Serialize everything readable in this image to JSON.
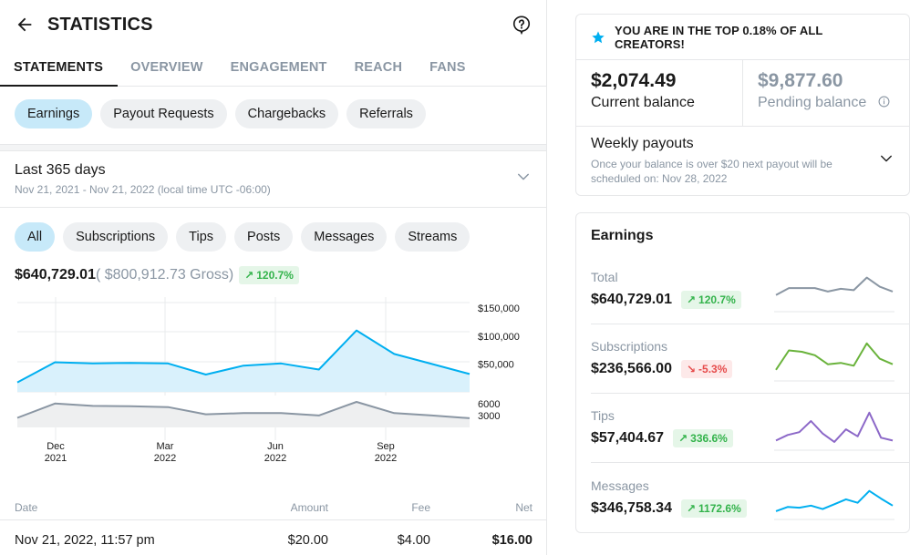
{
  "header": {
    "title": "STATISTICS"
  },
  "tabs": [
    {
      "label": "STATEMENTS",
      "active": true
    },
    {
      "label": "OVERVIEW",
      "active": false
    },
    {
      "label": "ENGAGEMENT",
      "active": false
    },
    {
      "label": "REACH",
      "active": false
    },
    {
      "label": "FANS",
      "active": false
    }
  ],
  "statement_types": [
    {
      "label": "Earnings",
      "active": true
    },
    {
      "label": "Payout Requests",
      "active": false
    },
    {
      "label": "Chargebacks",
      "active": false
    },
    {
      "label": "Referrals",
      "active": false
    }
  ],
  "period": {
    "title": "Last 365 days",
    "range": "Nov 21, 2021 - Nov 21, 2022 (local time UTC -06:00)"
  },
  "filters": [
    {
      "label": "All",
      "active": true
    },
    {
      "label": "Subscriptions",
      "active": false
    },
    {
      "label": "Tips",
      "active": false
    },
    {
      "label": "Posts",
      "active": false
    },
    {
      "label": "Messages",
      "active": false
    },
    {
      "label": "Streams",
      "active": false
    }
  ],
  "summary": {
    "net": "$640,729.01",
    "gross": "( $800,912.73 Gross)",
    "change": "120.7%",
    "change_direction": "up"
  },
  "chart_data": [
    {
      "type": "area",
      "title": "",
      "ylim": [
        0,
        160000
      ],
      "y_ticks": [
        50000,
        100000,
        150000
      ],
      "y_tick_labels": [
        "$50,000",
        "$100,000",
        "$150,000"
      ],
      "x_tick_labels": [
        {
          "month": "Dec",
          "year": "2021"
        },
        {
          "month": "Mar",
          "year": "2022"
        },
        {
          "month": "Jun",
          "year": "2022"
        },
        {
          "month": "Sep",
          "year": "2022"
        }
      ],
      "x": [
        "Nov 2021",
        "Dec 2021",
        "Jan 2022",
        "Feb 2022",
        "Mar 2022",
        "Apr 2022",
        "May 2022",
        "Jun 2022",
        "Jul 2022",
        "Aug 2022",
        "Sep 2022",
        "Oct 2022",
        "Nov 2022"
      ],
      "series": [
        {
          "values": [
            17000,
            53000,
            51000,
            52000,
            51000,
            31000,
            47000,
            51000,
            40000,
            110000,
            68000,
            50000,
            32000
          ],
          "color": "#00aff0"
        }
      ]
    },
    {
      "type": "area",
      "title": "",
      "ylim": [
        0,
        8000
      ],
      "y_ticks": [
        3000,
        6000
      ],
      "y_tick_labels": [
        "3000",
        "6000"
      ],
      "x": [
        "Nov 2021",
        "Dec 2021",
        "Jan 2022",
        "Feb 2022",
        "Mar 2022",
        "Apr 2022",
        "May 2022",
        "Jun 2022",
        "Jul 2022",
        "Aug 2022",
        "Sep 2022",
        "Oct 2022",
        "Nov 2022"
      ],
      "series": [
        {
          "values": [
            2400,
            6000,
            5400,
            5300,
            5100,
            3300,
            3600,
            3600,
            3000,
            6400,
            3600,
            3000,
            2300
          ],
          "color": "#8a96a3"
        }
      ]
    }
  ],
  "table": {
    "headers": [
      "Date",
      "Amount",
      "Fee",
      "Net"
    ],
    "rows": [
      [
        "Nov 21, 2022, 11:57 pm",
        "$20.00",
        "$4.00",
        "$16.00"
      ]
    ]
  },
  "banner": {
    "text": "YOU ARE IN THE TOP 0.18% OF ALL CREATORS!"
  },
  "balances": {
    "current_amount": "$2,074.49",
    "current_label": "Current balance",
    "pending_amount": "$9,877.60",
    "pending_label": "Pending balance"
  },
  "payouts": {
    "title": "Weekly payouts",
    "desc": "Once your balance is over $20 next payout will be scheduled on: Nov 28, 2022"
  },
  "earnings": {
    "title": "Earnings",
    "rows": [
      {
        "label": "Total",
        "value": "$640,729.01",
        "change": "120.7%",
        "direction": "up",
        "color": "#8a96a3",
        "spark": [
          20,
          30,
          30,
          30,
          25,
          29,
          27,
          45,
          32,
          25
        ]
      },
      {
        "label": "Subscriptions",
        "value": "$236,566.00",
        "change": "-5.3%",
        "direction": "down",
        "color": "#6ab33c",
        "spark": [
          12,
          40,
          38,
          33,
          20,
          22,
          18,
          50,
          28,
          20
        ]
      },
      {
        "label": "Tips",
        "value": "$57,404.67",
        "change": "336.6%",
        "direction": "up",
        "color": "#8c68c8",
        "spark": [
          10,
          18,
          22,
          38,
          20,
          8,
          26,
          16,
          50,
          14,
          10
        ]
      },
      {
        "label": "Messages",
        "value": "$346,758.34",
        "change": "1172.6%",
        "direction": "up",
        "color": "#00aff0",
        "spark": [
          8,
          14,
          13,
          16,
          11,
          18,
          25,
          20,
          37,
          26,
          16
        ]
      }
    ]
  }
}
